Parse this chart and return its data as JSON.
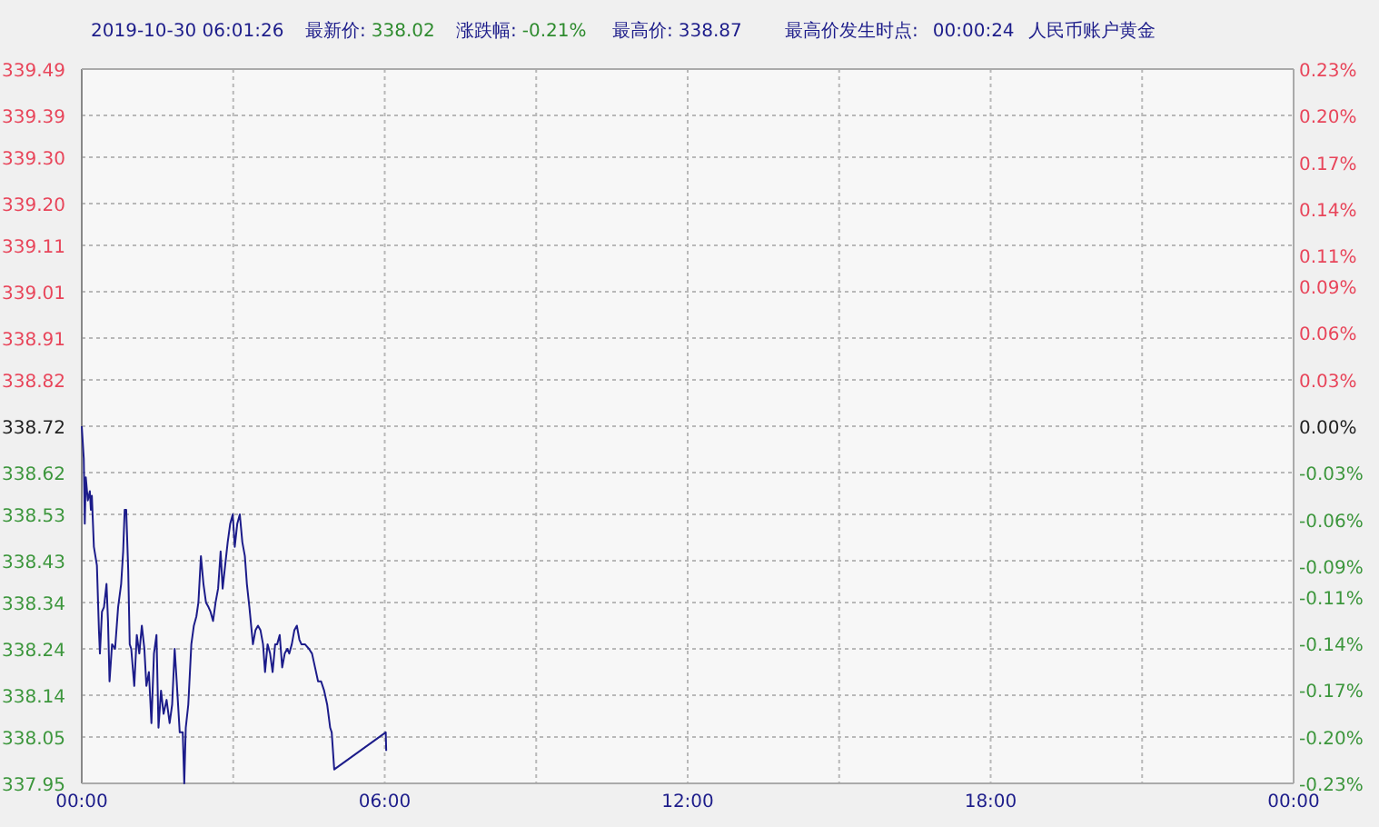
{
  "chart_data": {
    "type": "line",
    "title": "人民币账户黄金",
    "subtitle": "2019-10-30 06:01:26",
    "annotations": [
      "最新价:",
      "338.02",
      "涨跌幅:",
      "-0.21%",
      "最高价:",
      "338.87",
      "最高价发生时点:",
      "00:00:24"
    ],
    "xlim": [
      0,
      24
    ],
    "xticks": [
      {
        "value": 0,
        "label": "00:00"
      },
      {
        "value": 3,
        "label": null
      },
      {
        "value": 6,
        "label": "06:00"
      },
      {
        "value": 9,
        "label": null
      },
      {
        "value": 12,
        "label": "12:00"
      },
      {
        "value": 15,
        "label": null
      },
      {
        "value": 18,
        "label": "18:00"
      },
      {
        "value": 21,
        "label": null
      },
      {
        "value": 24,
        "label": "00:00"
      }
    ],
    "ylim": [
      337.95,
      339.49
    ],
    "yticks": [
      339.49,
      339.39,
      {
        "value": 339.3,
        "label": "339.30"
      },
      {
        "value": 339.2,
        "label": "339.20"
      },
      339.11,
      339.01,
      338.91,
      338.82,
      338.72,
      338.62,
      338.53,
      338.43,
      338.34,
      338.24,
      338.14,
      338.05,
      337.95
    ],
    "y2lim": [
      -0.23,
      0.23
    ],
    "y2ticks": [
      {
        "value": 0.23,
        "label": "0.23%"
      },
      {
        "value": 0.2,
        "label": "0.20%"
      },
      {
        "value": 0.17,
        "label": "0.17%"
      },
      {
        "value": 0.14,
        "label": "0.14%"
      },
      {
        "value": 0.11,
        "label": "0.11%"
      },
      {
        "value": 0.09,
        "label": "0.09%"
      },
      {
        "value": 0.06,
        "label": "0.06%"
      },
      {
        "value": 0.03,
        "label": "0.03%"
      },
      {
        "value": 0,
        "label": "0.00%"
      },
      {
        "value": -0.03,
        "label": "-0.03%"
      },
      {
        "value": -0.06,
        "label": "-0.06%"
      },
      {
        "value": -0.09,
        "label": "-0.09%"
      },
      {
        "value": -0.11,
        "label": "-0.11%"
      },
      {
        "value": -0.14,
        "label": "-0.14%"
      },
      {
        "value": -0.17,
        "label": "-0.17%"
      },
      {
        "value": -0.2,
        "label": "-0.20%"
      },
      {
        "value": -0.23,
        "label": "-0.23%"
      }
    ],
    "grid": true,
    "series": [
      {
        "color": "#1c1c8a",
        "x": [
          0,
          0.04,
          0.06,
          0.08,
          0.12,
          0.16,
          0.18,
          0.2,
          0.24,
          0.3,
          0.34,
          0.36,
          0.4,
          0.44,
          0.49,
          0.52,
          0.55,
          0.6,
          0.66,
          0.72,
          0.78,
          0.82,
          0.85,
          0.88,
          0.92,
          0.95,
          0.98,
          1.04,
          1.09,
          1.14,
          1.19,
          1.24,
          1.28,
          1.33,
          1.38,
          1.43,
          1.48,
          1.52,
          1.57,
          1.62,
          1.68,
          1.74,
          1.79,
          1.84,
          1.88,
          1.94,
          2.0,
          2.03,
          2.06,
          2.11,
          2.17,
          2.22,
          2.27,
          2.31,
          2.36,
          2.41,
          2.46,
          2.51,
          2.55,
          2.6,
          2.65,
          2.7,
          2.75,
          2.79,
          2.84,
          2.89,
          2.94,
          2.99,
          3.03,
          3.08,
          3.13,
          3.18,
          3.23,
          3.27,
          3.32,
          3.39,
          3.44,
          3.49,
          3.54,
          3.59,
          3.63,
          3.68,
          3.73,
          3.78,
          3.83,
          3.87,
          3.92,
          3.97,
          4.02,
          4.07,
          4.11,
          4.16,
          4.21,
          4.26,
          4.31,
          4.35,
          4.42,
          4.5,
          4.56,
          4.62,
          4.68,
          4.74,
          4.8,
          4.86,
          4.92,
          4.95,
          5.0,
          6.02,
          6.03
        ],
        "values": [
          338.72,
          338.65,
          338.51,
          338.61,
          338.56,
          338.58,
          338.54,
          338.57,
          338.46,
          338.42,
          338.28,
          338.23,
          338.32,
          338.33,
          338.38,
          338.3,
          338.17,
          338.25,
          338.24,
          338.33,
          338.38,
          338.45,
          338.54,
          338.54,
          338.41,
          338.25,
          338.24,
          338.16,
          338.27,
          338.23,
          338.29,
          338.24,
          338.16,
          338.19,
          338.08,
          338.23,
          338.27,
          338.07,
          338.15,
          338.1,
          338.13,
          338.08,
          338.12,
          338.24,
          338.17,
          338.06,
          338.06,
          337.95,
          338.07,
          338.12,
          338.25,
          338.29,
          338.31,
          338.34,
          338.44,
          338.38,
          338.34,
          338.33,
          338.32,
          338.3,
          338.34,
          338.37,
          338.45,
          338.37,
          338.42,
          338.47,
          338.51,
          338.53,
          338.46,
          338.51,
          338.53,
          338.47,
          338.44,
          338.38,
          338.33,
          338.25,
          338.28,
          338.29,
          338.28,
          338.25,
          338.19,
          338.25,
          338.23,
          338.19,
          338.25,
          338.25,
          338.27,
          338.2,
          338.23,
          338.24,
          338.23,
          338.25,
          338.28,
          338.29,
          338.26,
          338.25,
          338.25,
          338.24,
          338.23,
          338.2,
          338.17,
          338.17,
          338.15,
          338.12,
          338.07,
          338.06,
          337.98,
          338.06,
          338.02
        ]
      }
    ]
  }
}
